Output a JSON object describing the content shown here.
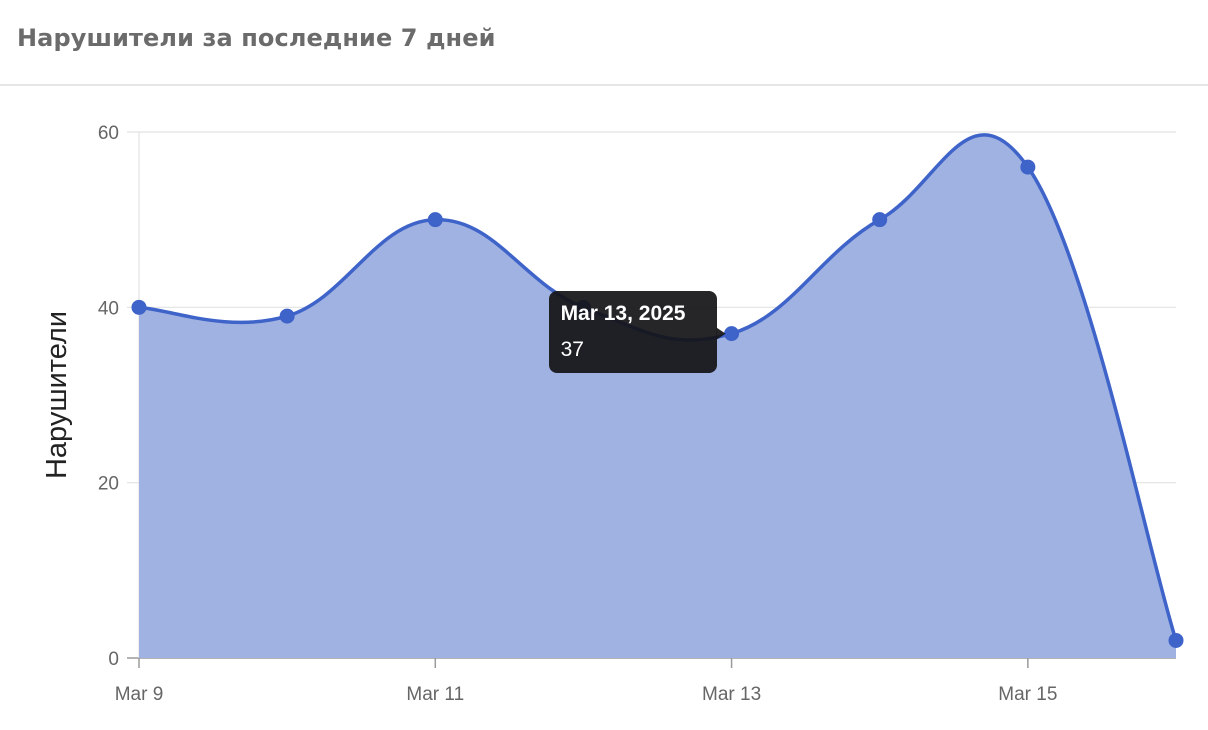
{
  "header": {
    "title": "Нарушители за последние 7 дней"
  },
  "chart_data": {
    "type": "area",
    "title": "",
    "xlabel": "",
    "ylabel": "Нарушители",
    "x": [
      "Mar 9",
      "Mar 10",
      "Mar 11",
      "Mar 12",
      "Mar 13",
      "Mar 14",
      "Mar 15",
      "Mar 16"
    ],
    "x_tick_labels": [
      "Mar 9",
      "Mar 11",
      "Mar 13",
      "Mar 15"
    ],
    "y_ticks": [
      0,
      20,
      40,
      60
    ],
    "ylim": [
      0,
      60
    ],
    "series": [
      {
        "values": [
          40,
          39,
          50,
          40,
          37,
          50,
          56,
          2
        ]
      }
    ],
    "colors": {
      "line": "#3e63c9",
      "fill": "#a0b2e2",
      "grid": "#e2e2e2",
      "axis": "#9a9a9a"
    },
    "grid": true,
    "tooltip": {
      "title": "Mar 13, 2025",
      "value": "37"
    }
  }
}
